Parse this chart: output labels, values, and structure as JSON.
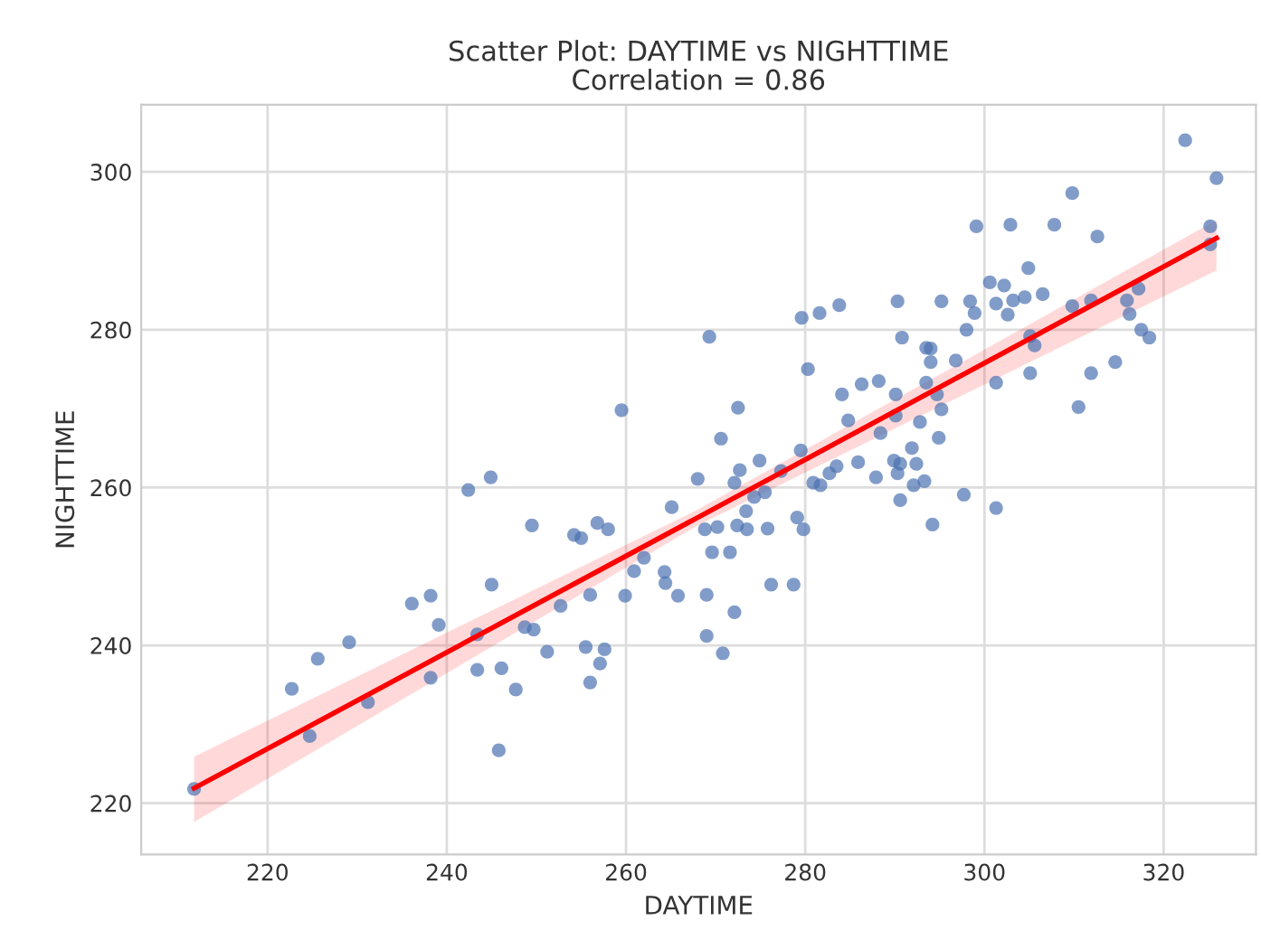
{
  "chart_data": {
    "type": "scatter",
    "title": "Scatter Plot: DAYTIME vs NIGHTTIME",
    "subtitle": "Correlation = 0.86",
    "xlabel": "DAYTIME",
    "ylabel": "NIGHTTIME",
    "xlim": [
      205.9,
      330.3
    ],
    "ylim": [
      213.5,
      308.5
    ],
    "xticks": [
      220,
      240,
      260,
      280,
      300,
      320
    ],
    "yticks": [
      220,
      240,
      260,
      280,
      300
    ],
    "grid": true,
    "series": [
      {
        "color": "#4c72b0",
        "marker": "circle",
        "x": [
          211.8,
          222.7,
          224.7,
          225.6,
          229.1,
          231.2,
          236.1,
          238.2,
          238.2,
          239.1,
          242.4,
          244.9,
          245.0,
          243.4,
          243.4,
          246.1,
          245.8,
          247.7,
          248.7,
          249.7,
          249.5,
          251.2,
          252.7,
          254.2,
          255.0,
          256.8,
          258.0,
          255.5,
          256.0,
          256.0,
          257.1,
          257.6,
          259.5,
          259.9,
          260.9,
          262.0,
          264.3,
          264.4,
          265.1,
          265.8,
          268.0,
          268.8,
          270.2,
          269.0,
          269.0,
          269.6,
          269.3,
          270.6,
          270.8,
          271.6,
          272.1,
          272.5,
          272.1,
          272.7,
          272.4,
          273.4,
          273.5,
          274.3,
          274.9,
          275.5,
          275.8,
          276.2,
          277.3,
          278.7,
          279.1,
          279.8,
          279.5,
          279.6,
          281.6,
          283.8,
          280.3,
          280.9,
          281.7,
          283.5,
          284.1,
          284.8,
          285.9,
          286.3,
          287.9,
          282.7,
          288.2,
          288.4,
          290.1,
          290.3,
          290.8,
          290.1,
          289.9,
          290.6,
          290.3,
          290.6,
          291.9,
          292.4,
          292.1,
          293.3,
          292.8,
          293.5,
          294.0,
          294.0,
          293.5,
          294.7,
          295.2,
          294.9,
          294.2,
          295.2,
          296.8,
          297.7,
          298.0,
          298.4,
          298.9,
          299.1,
          300.6,
          301.3,
          301.3,
          301.3,
          302.2,
          302.6,
          302.9,
          303.2,
          304.5,
          304.9,
          305.1,
          305.6,
          305.1,
          306.5,
          307.8,
          309.8,
          309.8,
          310.5,
          311.9,
          311.9,
          312.6,
          314.6,
          315.9,
          316.2,
          317.2,
          317.5,
          318.4,
          322.4,
          325.9,
          325.2,
          325.2
        ],
        "values": [
          221.8,
          234.5,
          228.5,
          238.3,
          240.4,
          232.8,
          245.3,
          246.3,
          235.9,
          242.6,
          259.7,
          261.3,
          247.7,
          241.4,
          236.9,
          237.1,
          226.7,
          234.4,
          242.3,
          242.0,
          255.2,
          239.2,
          245.0,
          254.0,
          253.6,
          255.5,
          254.7,
          239.8,
          246.4,
          235.3,
          237.7,
          239.5,
          269.8,
          246.3,
          249.4,
          251.1,
          249.3,
          247.9,
          257.5,
          246.3,
          261.1,
          254.7,
          255.0,
          246.4,
          241.2,
          251.8,
          279.1,
          266.2,
          239.0,
          251.8,
          244.2,
          270.1,
          260.6,
          262.2,
          255.2,
          257.0,
          254.7,
          258.8,
          263.4,
          259.4,
          254.8,
          247.7,
          262.1,
          247.7,
          256.2,
          254.7,
          264.7,
          281.5,
          282.1,
          283.1,
          275.0,
          260.6,
          260.3,
          262.7,
          271.8,
          268.5,
          263.2,
          273.1,
          261.3,
          261.8,
          273.5,
          266.9,
          271.8,
          283.6,
          279.0,
          269.1,
          263.4,
          263.0,
          261.8,
          258.4,
          265.0,
          263.0,
          260.3,
          260.8,
          268.3,
          277.7,
          277.6,
          275.9,
          273.3,
          271.8,
          269.9,
          266.3,
          255.3,
          283.6,
          276.1,
          259.1,
          280.0,
          283.6,
          282.1,
          293.1,
          286.0,
          273.3,
          257.4,
          283.3,
          285.6,
          281.9,
          293.3,
          283.7,
          284.1,
          287.8,
          279.2,
          278.0,
          274.5,
          284.5,
          293.3,
          297.3,
          283.0,
          270.2,
          283.7,
          274.5,
          291.8,
          275.9,
          283.7,
          282.0,
          285.2,
          280.0,
          279.0,
          304.0,
          299.2,
          293.1,
          290.8
        ]
      },
      {
        "type": "line",
        "marker": "none",
        "color": "#ff0000",
        "x": [
          211.8,
          268.0,
          325.9
        ],
        "values": [
          221.9,
          256.2,
          291.6
        ],
        "lower": [
          217.6,
          255.2,
          287.5
        ],
        "upper": [
          225.9,
          257.2,
          293.9
        ]
      }
    ]
  }
}
